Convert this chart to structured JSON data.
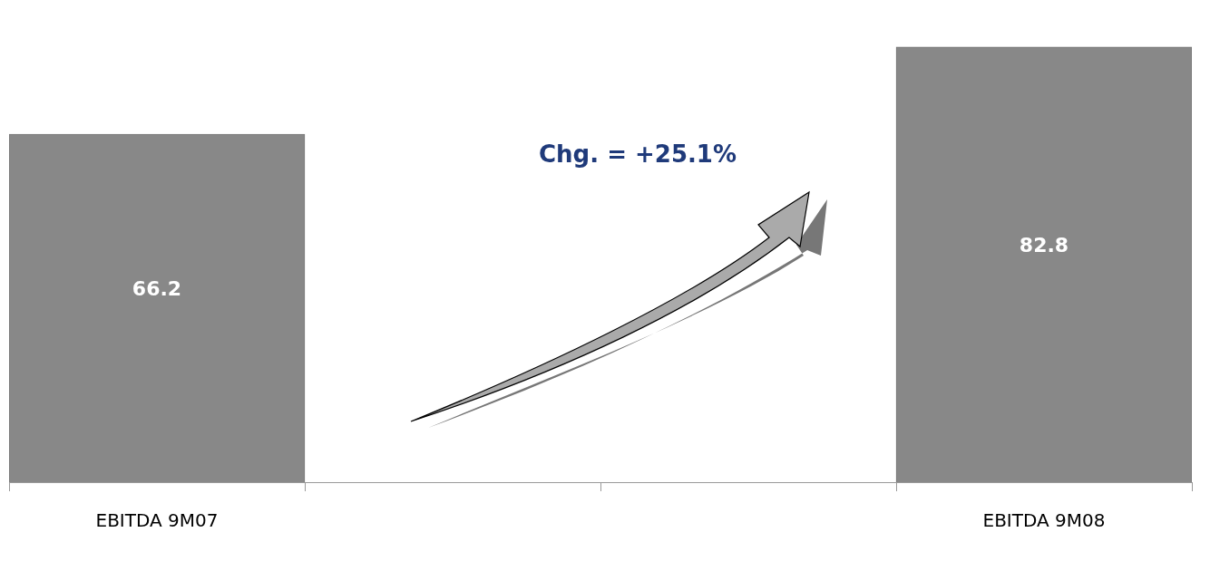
{
  "chart_data": {
    "type": "bar",
    "categories": [
      "EBITDA 9M07",
      null,
      null,
      "EBITDA 9M08"
    ],
    "values": [
      66.2,
      null,
      null,
      82.8
    ],
    "color": "#888888",
    "data_labels": true,
    "annotations": [
      "Chg. = +25.1%"
    ],
    "grid": false,
    "legend": false,
    "tick_labels": "x"
  }
}
